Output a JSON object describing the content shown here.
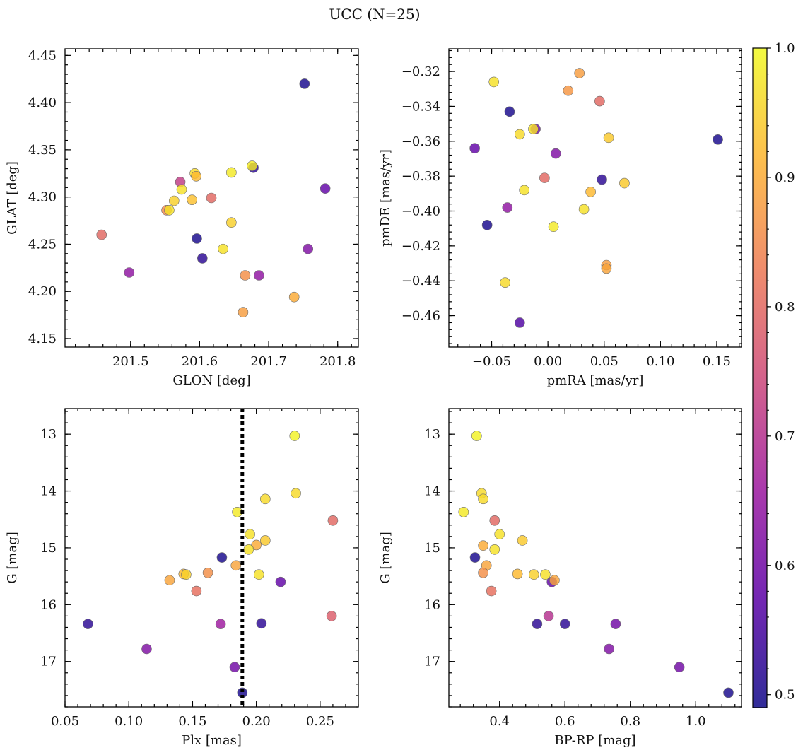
{
  "title": "UCC (N=25)",
  "chart_data": [
    {
      "type": "scatter",
      "xlabel": "GLON [deg]",
      "ylabel": "GLAT [deg]",
      "xlim": [
        201.405,
        201.83
      ],
      "ylim": [
        4.141,
        4.457
      ],
      "y_inverted": false,
      "xticks": [
        201.5,
        201.6,
        201.7,
        201.8
      ],
      "xtick_labels": [
        "201.5",
        "201.6",
        "201.7",
        "201.8"
      ],
      "yticks": [
        4.15,
        4.2,
        4.25,
        4.3,
        4.35,
        4.4,
        4.45
      ],
      "ytick_labels": [
        "4.15",
        "4.20",
        "4.25",
        "4.30",
        "4.35",
        "4.40",
        "4.45"
      ],
      "points": [
        {
          "x": 201.752,
          "y": 4.42,
          "c": 0.5
        },
        {
          "x": 201.782,
          "y": 4.309,
          "c": 0.58
        },
        {
          "x": 201.678,
          "y": 4.331,
          "c": 0.52
        },
        {
          "x": 201.676,
          "y": 4.333,
          "c": 0.98
        },
        {
          "x": 201.646,
          "y": 4.326,
          "c": 0.98
        },
        {
          "x": 201.593,
          "y": 4.325,
          "c": 0.96
        },
        {
          "x": 201.595,
          "y": 4.322,
          "c": 0.92
        },
        {
          "x": 201.572,
          "y": 4.316,
          "c": 0.72
        },
        {
          "x": 201.574,
          "y": 4.308,
          "c": 0.97
        },
        {
          "x": 201.563,
          "y": 4.296,
          "c": 0.95
        },
        {
          "x": 201.589,
          "y": 4.297,
          "c": 0.93
        },
        {
          "x": 201.617,
          "y": 4.299,
          "c": 0.8
        },
        {
          "x": 201.552,
          "y": 4.286,
          "c": 0.85
        },
        {
          "x": 201.556,
          "y": 4.286,
          "c": 0.97
        },
        {
          "x": 201.646,
          "y": 4.273,
          "c": 0.95
        },
        {
          "x": 201.596,
          "y": 4.256,
          "c": 0.5
        },
        {
          "x": 201.604,
          "y": 4.235,
          "c": 0.52
        },
        {
          "x": 201.634,
          "y": 4.245,
          "c": 0.97
        },
        {
          "x": 201.757,
          "y": 4.245,
          "c": 0.62
        },
        {
          "x": 201.458,
          "y": 4.26,
          "c": 0.8
        },
        {
          "x": 201.498,
          "y": 4.22,
          "c": 0.64
        },
        {
          "x": 201.666,
          "y": 4.217,
          "c": 0.86
        },
        {
          "x": 201.686,
          "y": 4.217,
          "c": 0.64
        },
        {
          "x": 201.737,
          "y": 4.194,
          "c": 0.9
        },
        {
          "x": 201.663,
          "y": 4.178,
          "c": 0.88
        }
      ]
    },
    {
      "type": "scatter",
      "xlabel": "pmRA [mas/yr]",
      "ylabel": "pmDE [mas/yr]",
      "xlim": [
        -0.088,
        0.172
      ],
      "ylim": [
        -0.478,
        -0.307
      ],
      "y_inverted": false,
      "xticks": [
        -0.05,
        0.0,
        0.05,
        0.1,
        0.15
      ],
      "xtick_labels": [
        "−0.05",
        "0.00",
        "0.05",
        "0.10",
        "0.15"
      ],
      "yticks": [
        -0.46,
        -0.44,
        -0.42,
        -0.4,
        -0.38,
        -0.36,
        -0.34,
        -0.32
      ],
      "ytick_labels": [
        "−0.46",
        "−0.44",
        "−0.42",
        "−0.40",
        "−0.38",
        "−0.36",
        "−0.34",
        "−0.32"
      ],
      "points": [
        {
          "x": -0.048,
          "y": -0.326,
          "c": 0.97
        },
        {
          "x": 0.028,
          "y": -0.321,
          "c": 0.88
        },
        {
          "x": 0.018,
          "y": -0.331,
          "c": 0.87
        },
        {
          "x": 0.046,
          "y": -0.337,
          "c": 0.8
        },
        {
          "x": -0.034,
          "y": -0.343,
          "c": 0.5
        },
        {
          "x": -0.011,
          "y": -0.353,
          "c": 0.6
        },
        {
          "x": -0.013,
          "y": -0.353,
          "c": 0.97
        },
        {
          "x": -0.025,
          "y": -0.356,
          "c": 0.96
        },
        {
          "x": 0.054,
          "y": -0.358,
          "c": 0.94
        },
        {
          "x": 0.151,
          "y": -0.359,
          "c": 0.5
        },
        {
          "x": -0.065,
          "y": -0.364,
          "c": 0.58
        },
        {
          "x": 0.007,
          "y": -0.367,
          "c": 0.62
        },
        {
          "x": -0.003,
          "y": -0.381,
          "c": 0.8
        },
        {
          "x": 0.048,
          "y": -0.382,
          "c": 0.52
        },
        {
          "x": 0.068,
          "y": -0.384,
          "c": 0.94
        },
        {
          "x": -0.021,
          "y": -0.388,
          "c": 0.97
        },
        {
          "x": 0.038,
          "y": -0.389,
          "c": 0.92
        },
        {
          "x": -0.036,
          "y": -0.398,
          "c": 0.64
        },
        {
          "x": 0.032,
          "y": -0.399,
          "c": 0.97
        },
        {
          "x": -0.054,
          "y": -0.408,
          "c": 0.5
        },
        {
          "x": 0.005,
          "y": -0.409,
          "c": 0.98
        },
        {
          "x": 0.052,
          "y": -0.431,
          "c": 0.88
        },
        {
          "x": 0.052,
          "y": -0.433,
          "c": 0.89
        },
        {
          "x": -0.038,
          "y": -0.441,
          "c": 0.96
        },
        {
          "x": -0.025,
          "y": -0.464,
          "c": 0.56
        }
      ]
    },
    {
      "type": "scatter",
      "xlabel": "Plx [mas]",
      "ylabel": "G [mag]",
      "xlim": [
        0.05,
        0.28
      ],
      "ylim": [
        17.8,
        12.55
      ],
      "y_inverted": true,
      "xticks": [
        0.05,
        0.1,
        0.15,
        0.2,
        0.25
      ],
      "xtick_labels": [
        "0.05",
        "0.10",
        "0.15",
        "0.20",
        "0.25"
      ],
      "yticks": [
        13,
        14,
        15,
        16,
        17
      ],
      "ytick_labels": [
        "13",
        "14",
        "15",
        "16",
        "17"
      ],
      "vline": {
        "x": 0.189,
        "style": "dotted",
        "color": "#000000"
      },
      "points": [
        {
          "x": 0.23,
          "y": 13.03,
          "c": 0.99
        },
        {
          "x": 0.231,
          "y": 14.04,
          "c": 0.96
        },
        {
          "x": 0.207,
          "y": 14.14,
          "c": 0.96
        },
        {
          "x": 0.185,
          "y": 14.37,
          "c": 0.98
        },
        {
          "x": 0.26,
          "y": 14.52,
          "c": 0.8
        },
        {
          "x": 0.195,
          "y": 14.76,
          "c": 0.97
        },
        {
          "x": 0.207,
          "y": 14.87,
          "c": 0.94
        },
        {
          "x": 0.2,
          "y": 14.95,
          "c": 0.9
        },
        {
          "x": 0.194,
          "y": 15.03,
          "c": 0.97
        },
        {
          "x": 0.173,
          "y": 15.17,
          "c": 0.5
        },
        {
          "x": 0.184,
          "y": 15.31,
          "c": 0.89
        },
        {
          "x": 0.162,
          "y": 15.44,
          "c": 0.86
        },
        {
          "x": 0.143,
          "y": 15.46,
          "c": 0.92
        },
        {
          "x": 0.145,
          "y": 15.47,
          "c": 0.95
        },
        {
          "x": 0.202,
          "y": 15.47,
          "c": 0.97
        },
        {
          "x": 0.132,
          "y": 15.57,
          "c": 0.89
        },
        {
          "x": 0.219,
          "y": 15.6,
          "c": 0.58
        },
        {
          "x": 0.153,
          "y": 15.76,
          "c": 0.81
        },
        {
          "x": 0.259,
          "y": 16.2,
          "c": 0.78
        },
        {
          "x": 0.068,
          "y": 16.34,
          "c": 0.52
        },
        {
          "x": 0.172,
          "y": 16.34,
          "c": 0.66
        },
        {
          "x": 0.204,
          "y": 16.33,
          "c": 0.52
        },
        {
          "x": 0.114,
          "y": 16.78,
          "c": 0.62
        },
        {
          "x": 0.183,
          "y": 17.1,
          "c": 0.6
        },
        {
          "x": 0.189,
          "y": 17.55,
          "c": 0.5
        }
      ]
    },
    {
      "type": "scatter",
      "xlabel": "BP-RP [mag]",
      "ylabel": "G [mag]",
      "xlim": [
        0.245,
        1.14
      ],
      "ylim": [
        17.8,
        12.55
      ],
      "y_inverted": true,
      "xticks": [
        0.4,
        0.6,
        0.8,
        1.0
      ],
      "xtick_labels": [
        "0.4",
        "0.6",
        "0.8",
        "1.0"
      ],
      "yticks": [
        13,
        14,
        15,
        16,
        17
      ],
      "ytick_labels": [
        "13",
        "14",
        "15",
        "16",
        "17"
      ],
      "points": [
        {
          "x": 0.33,
          "y": 13.03,
          "c": 0.99
        },
        {
          "x": 0.345,
          "y": 14.04,
          "c": 0.96
        },
        {
          "x": 0.35,
          "y": 14.14,
          "c": 0.96
        },
        {
          "x": 0.29,
          "y": 14.37,
          "c": 0.98
        },
        {
          "x": 0.385,
          "y": 14.52,
          "c": 0.8
        },
        {
          "x": 0.4,
          "y": 14.76,
          "c": 0.97
        },
        {
          "x": 0.47,
          "y": 14.87,
          "c": 0.94
        },
        {
          "x": 0.35,
          "y": 14.96,
          "c": 0.9
        },
        {
          "x": 0.385,
          "y": 15.03,
          "c": 0.97
        },
        {
          "x": 0.325,
          "y": 15.17,
          "c": 0.5
        },
        {
          "x": 0.36,
          "y": 15.31,
          "c": 0.89
        },
        {
          "x": 0.35,
          "y": 15.44,
          "c": 0.86
        },
        {
          "x": 0.455,
          "y": 15.46,
          "c": 0.92
        },
        {
          "x": 0.505,
          "y": 15.47,
          "c": 0.95
        },
        {
          "x": 0.54,
          "y": 15.47,
          "c": 0.97
        },
        {
          "x": 0.56,
          "y": 15.6,
          "c": 0.58
        },
        {
          "x": 0.568,
          "y": 15.57,
          "c": 0.89
        },
        {
          "x": 0.375,
          "y": 15.76,
          "c": 0.81
        },
        {
          "x": 0.55,
          "y": 16.2,
          "c": 0.7
        },
        {
          "x": 0.515,
          "y": 16.34,
          "c": 0.52
        },
        {
          "x": 0.6,
          "y": 16.34,
          "c": 0.52
        },
        {
          "x": 0.755,
          "y": 16.34,
          "c": 0.6
        },
        {
          "x": 0.735,
          "y": 16.78,
          "c": 0.62
        },
        {
          "x": 0.95,
          "y": 17.1,
          "c": 0.6
        },
        {
          "x": 1.1,
          "y": 17.55,
          "c": 0.5
        }
      ]
    }
  ],
  "colorbar": {
    "range": [
      0.49,
      1.0
    ],
    "ticks": [
      0.5,
      0.6,
      0.7,
      0.8,
      0.9,
      1.0
    ],
    "tick_labels": [
      "0.5",
      "0.6",
      "0.7",
      "0.8",
      "0.9",
      "1.0"
    ],
    "colormap": "plasma"
  },
  "colors": {
    "marker_edge": "#6b6b6b",
    "axes": "#000000",
    "colormap_stops": [
      "#0d0887",
      "#5c01a6",
      "#9c179e",
      "#cc4778",
      "#ed7953",
      "#fdb42f",
      "#f0f921"
    ]
  }
}
